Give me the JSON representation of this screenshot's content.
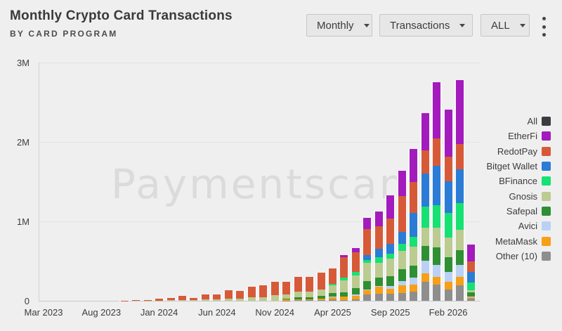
{
  "header": {
    "title": "Monthly Crypto Card Transactions",
    "subtitle": "BY CARD PROGRAM"
  },
  "controls": {
    "dropdowns": [
      {
        "label": "Monthly"
      },
      {
        "label": "Transactions"
      },
      {
        "label": "ALL"
      }
    ],
    "menu_icon": "kebab-menu-icon"
  },
  "watermark": "Paymentscan",
  "chart_data": {
    "type": "bar",
    "stacked": true,
    "title": "Monthly Crypto Card Transactions",
    "subtitle": "BY CARD PROGRAM",
    "unit": "millions of transactions",
    "ylim": [
      0,
      3000000
    ],
    "y_ticks": [
      {
        "value": 0,
        "label": "0"
      },
      {
        "value": 1,
        "label": "1M"
      },
      {
        "value": 2,
        "label": "2M"
      },
      {
        "value": 3,
        "label": "3M"
      }
    ],
    "grid": true,
    "legend_position": "right",
    "categories": [
      "Mar 2023",
      "Apr 2023",
      "May 2023",
      "Jun 2023",
      "Jul 2023",
      "Aug 2023",
      "Sep 2023",
      "Oct 2023",
      "Nov 2023",
      "Dec 2023",
      "Jan 2024",
      "Feb 2024",
      "Mar 2024",
      "Apr 2024",
      "May 2024",
      "Jun 2024",
      "Jul 2024",
      "Aug 2024",
      "Sep 2024",
      "Oct 2024",
      "Nov 2024",
      "Dec 2024",
      "Jan 2025",
      "Feb 2025",
      "Mar 2025",
      "Apr 2025",
      "May 2025",
      "Jun 2025",
      "Jul 2025",
      "Aug 2025",
      "Sep 2025",
      "Oct 2025",
      "Nov 2025",
      "Dec 2025",
      "Jan 2026",
      "Feb 2026",
      "Mar 2026",
      "Apr 2026"
    ],
    "x_tick_labels": [
      "Mar 2023",
      "Aug 2023",
      "Jan 2024",
      "Jun 2024",
      "Nov 2024",
      "Apr 2025",
      "Sep 2025",
      "Feb 2026"
    ],
    "x_tick_indices": [
      0,
      5,
      10,
      15,
      20,
      25,
      30,
      35
    ],
    "legend_toggle_all": {
      "label": "All",
      "color": "#3c3c40"
    },
    "series": [
      {
        "name": "Other (10)",
        "color": "#8e8e8e",
        "values_millions": [
          0,
          0,
          0,
          0,
          0,
          0,
          0,
          0,
          0,
          0,
          0,
          0,
          0,
          0,
          0,
          0,
          0,
          0,
          0,
          0,
          0,
          0.004,
          0.006,
          0.006,
          0.008,
          0.014,
          0.012,
          0.02,
          0.08,
          0.088,
          0.086,
          0.099,
          0.117,
          0.24,
          0.205,
          0.143,
          0.193,
          0.022
        ]
      },
      {
        "name": "MetaMask",
        "color": "#f79f15",
        "values_millions": [
          0,
          0,
          0,
          0,
          0,
          0,
          0,
          0,
          0,
          0,
          0,
          0,
          0,
          0,
          0,
          0,
          0,
          0,
          0,
          0,
          0,
          0.01,
          0.013,
          0.014,
          0.022,
          0.034,
          0.037,
          0.043,
          0.05,
          0.088,
          0.068,
          0.094,
          0.086,
          0.105,
          0.093,
          0.093,
          0.105,
          0.019
        ]
      },
      {
        "name": "Avici",
        "color": "#b9d1f5",
        "values_millions": [
          0,
          0,
          0,
          0,
          0,
          0,
          0,
          0,
          0,
          0,
          0,
          0,
          0,
          0,
          0,
          0,
          0,
          0,
          0,
          0,
          0,
          0,
          0,
          0,
          0,
          0.005,
          0.006,
          0.017,
          0.012,
          0.012,
          0.034,
          0.056,
          0.087,
          0.158,
          0.155,
          0.124,
          0.155,
          0.01
        ]
      },
      {
        "name": "Safepal",
        "color": "#2f8f33",
        "values_millions": [
          0,
          0,
          0,
          0,
          0,
          0,
          0,
          0,
          0,
          0,
          0,
          0,
          0,
          0,
          0,
          0,
          0,
          0,
          0,
          0,
          0,
          0.014,
          0.022,
          0.024,
          0.03,
          0.04,
          0.052,
          0.076,
          0.105,
          0.106,
          0.119,
          0.15,
          0.151,
          0.184,
          0.22,
          0.186,
          0.186,
          0.056
        ]
      },
      {
        "name": "Gnosis",
        "color": "#bccb90",
        "values_millions": [
          0,
          0,
          0,
          0,
          0,
          0,
          0,
          0,
          0,
          0.002,
          0.004,
          0.005,
          0.008,
          0.01,
          0.016,
          0.017,
          0.03,
          0.027,
          0.04,
          0.046,
          0.07,
          0.05,
          0.07,
          0.072,
          0.08,
          0.1,
          0.15,
          0.162,
          0.23,
          0.18,
          0.22,
          0.225,
          0.237,
          0.237,
          0.25,
          0.25,
          0.25,
          0.028
        ]
      },
      {
        "name": "BFinance",
        "color": "#15e272",
        "values_millions": [
          0,
          0,
          0,
          0,
          0,
          0,
          0,
          0,
          0,
          0,
          0,
          0,
          0,
          0,
          0,
          0,
          0,
          0,
          0,
          0,
          0,
          0,
          0,
          0,
          0,
          0.022,
          0.038,
          0.043,
          0.04,
          0.075,
          0.068,
          0.094,
          0.13,
          0.26,
          0.28,
          0.31,
          0.34,
          0.094
        ]
      },
      {
        "name": "Bitget Wallet",
        "color": "#2a7cd6",
        "values_millions": [
          0,
          0,
          0,
          0,
          0,
          0,
          0,
          0,
          0,
          0,
          0,
          0,
          0,
          0,
          0,
          0,
          0,
          0,
          0,
          0,
          0,
          0,
          0,
          0,
          0,
          0,
          0,
          0,
          0.055,
          0.105,
          0.12,
          0.15,
          0.3,
          0.42,
          0.5,
          0.4,
          0.43,
          0.132
        ]
      },
      {
        "name": "RedotPay",
        "color": "#d75a38",
        "values_millions": [
          0,
          0,
          0,
          0,
          0,
          0,
          0,
          0.004,
          0.006,
          0.009,
          0.019,
          0.026,
          0.055,
          0.023,
          0.061,
          0.061,
          0.105,
          0.096,
          0.14,
          0.151,
          0.165,
          0.16,
          0.194,
          0.186,
          0.211,
          0.191,
          0.255,
          0.254,
          0.33,
          0.286,
          0.32,
          0.45,
          0.39,
          0.29,
          0.34,
          0.31,
          0.31,
          0.131
        ]
      },
      {
        "name": "EtherFi",
        "color": "#a31bbc",
        "values_millions": [
          0,
          0,
          0,
          0,
          0,
          0,
          0,
          0,
          0,
          0,
          0,
          0,
          0,
          0,
          0,
          0,
          0,
          0,
          0,
          0,
          0,
          0,
          0,
          0,
          0,
          0,
          0.023,
          0.053,
          0.14,
          0.18,
          0.29,
          0.32,
          0.41,
          0.47,
          0.71,
          0.59,
          0.81,
          0.217
        ]
      }
    ],
    "legend_items": [
      {
        "label": "All",
        "color": "#3c3c40"
      },
      {
        "label": "EtherFi",
        "color": "#a31bbc"
      },
      {
        "label": "RedotPay",
        "color": "#d75a38"
      },
      {
        "label": "Bitget Wallet",
        "color": "#2a7cd6"
      },
      {
        "label": "BFinance",
        "color": "#15e272"
      },
      {
        "label": "Gnosis",
        "color": "#bccb90"
      },
      {
        "label": "Safepal",
        "color": "#2f8f33"
      },
      {
        "label": "Avici",
        "color": "#b9d1f5"
      },
      {
        "label": "MetaMask",
        "color": "#f79f15"
      },
      {
        "label": "Other (10)",
        "color": "#8e8e8e"
      }
    ]
  }
}
